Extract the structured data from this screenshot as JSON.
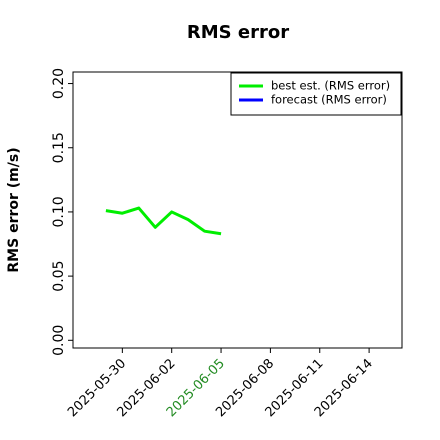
{
  "chart_data": {
    "type": "line",
    "title": "RMS error",
    "y_label": "RMS error (m/s)",
    "x": [
      "2025-05-29",
      "2025-05-30",
      "2025-05-31",
      "2025-06-01",
      "2025-06-02",
      "2025-06-03",
      "2025-06-04",
      "2025-06-05"
    ],
    "series": [
      {
        "name": "best est. (RMS error)",
        "color": "#00ee00",
        "values": [
          0.101,
          0.099,
          0.103,
          0.088,
          0.1,
          0.094,
          0.085,
          0.083
        ]
      },
      {
        "name": "forecast (RMS error)",
        "color": "#0000ff",
        "values": [
          null,
          null,
          null,
          null,
          null,
          null,
          null,
          null
        ]
      }
    ],
    "xlim": [
      "2025-05-27",
      "2025-06-16"
    ],
    "xticks": [
      "2025-05-30",
      "2025-06-02",
      "2025-06-05",
      "2025-06-08",
      "2025-06-11",
      "2025-06-14"
    ],
    "highlight_xtick": "2025-06-05",
    "highlight_color": "#228b22",
    "ylim": [
      -0.006,
      0.209
    ],
    "yticks": [
      {
        "value": 0,
        "label": "0.00"
      },
      {
        "value": 0.05,
        "label": "0.05"
      },
      {
        "value": 0.1,
        "label": "0.10"
      },
      {
        "value": 0.15,
        "label": "0.15"
      },
      {
        "value": 0.2,
        "label": "0.20"
      }
    ],
    "legend": "upper right"
  }
}
